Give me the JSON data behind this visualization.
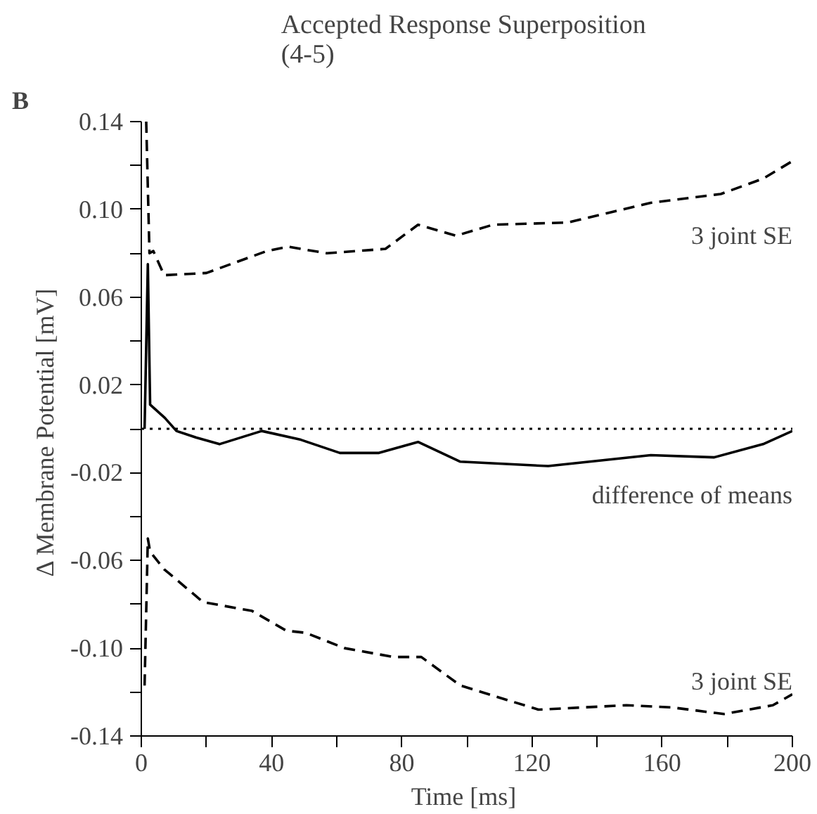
{
  "chart_data": {
    "type": "line",
    "title": "Accepted  Response Superposition\n(4-5)",
    "xlabel": "Time  [ms]",
    "ylabel": "Δ Membrane Potential  [mV]",
    "xlim": [
      0,
      200
    ],
    "ylim": [
      -0.14,
      0.14
    ],
    "xticks": [
      0,
      {
        "value": 20,
        "label": null
      },
      40,
      {
        "value": 60,
        "label": null
      },
      80,
      {
        "value": 100,
        "label": null
      },
      120,
      {
        "value": 140,
        "label": null
      },
      160,
      {
        "value": 180,
        "label": null
      },
      200
    ],
    "yticks": [
      -0.14,
      {
        "value": -0.12,
        "label": null
      },
      {
        "value": -0.1,
        "label": "-0.10"
      },
      {
        "value": -0.08,
        "label": null
      },
      -0.06,
      {
        "value": -0.04,
        "label": null
      },
      -0.02,
      {
        "value": 0,
        "label": null
      },
      0.02,
      {
        "value": 0.04,
        "label": null
      },
      0.06,
      {
        "value": 0.08,
        "label": null
      },
      {
        "value": 0.1,
        "label": "0.10"
      },
      {
        "value": 0.12,
        "label": null
      },
      0.14
    ],
    "series": [
      {
        "color": "#000000",
        "line_style": "dashed",
        "x": [
          1.5,
          2.5,
          3.7,
          7,
          20,
          38.5,
          45,
          57,
          75,
          85,
          96.7,
          108,
          131,
          156.5,
          178,
          191,
          200
        ],
        "values": [
          0.14,
          0.08,
          0.081,
          0.07,
          0.071,
          0.081,
          0.083,
          0.08,
          0.082,
          0.093,
          0.088,
          0.093,
          0.094,
          0.103,
          0.107,
          0.114,
          0.122
        ]
      },
      {
        "color": "#000000",
        "line_style": "solid",
        "x": [
          1,
          2,
          2.7,
          7.2,
          10.8,
          16.9,
          24,
          37,
          49,
          61,
          73,
          85,
          98,
          125,
          156.5,
          176,
          191,
          200
        ],
        "values": [
          0,
          0.075,
          0.011,
          0.005,
          -0.001,
          -0.004,
          -0.007,
          -0.001,
          -0.005,
          -0.011,
          -0.011,
          -0.006,
          -0.015,
          -0.017,
          -0.012,
          -0.013,
          -0.007,
          -0.001
        ]
      },
      {
        "color": "#000000",
        "line_style": "dashed",
        "x": [
          1,
          2,
          2.7,
          7,
          19,
          34,
          44.5,
          50.5,
          62.5,
          77.5,
          86,
          98,
          122,
          149,
          163,
          179,
          194,
          200
        ],
        "values": [
          -0.117,
          -0.05,
          -0.056,
          -0.064,
          -0.079,
          -0.083,
          -0.092,
          -0.093,
          -0.1,
          -0.104,
          -0.104,
          -0.117,
          -0.128,
          -0.126,
          -0.127,
          -0.13,
          -0.126,
          -0.121
        ]
      }
    ],
    "ref_lines": [
      {
        "axis": "y",
        "value": 0,
        "color": "#000000",
        "line_style": "dotted"
      }
    ],
    "annotations": [
      "B",
      "3 joint SE",
      "difference of means",
      "3 joint SE"
    ],
    "grid": false,
    "marker": "none"
  }
}
